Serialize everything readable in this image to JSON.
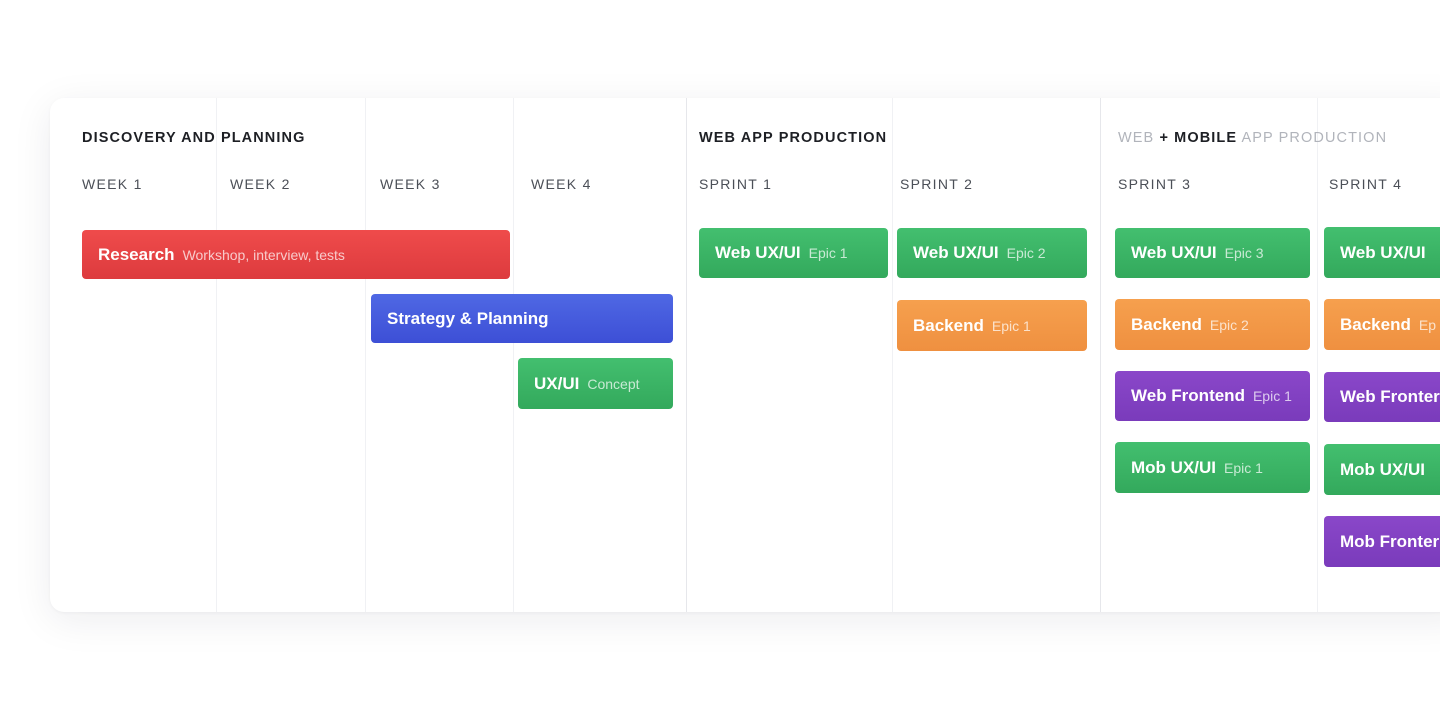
{
  "sections": {
    "discovery": {
      "title": "DISCOVERY AND PLANNING"
    },
    "web": {
      "title": "WEB APP PRODUCTION"
    },
    "mobile": {
      "title_a": "WEB",
      "title_b": " + MOBILE",
      "title_c": " APP PRODUCTION"
    }
  },
  "columns": [
    "WEEK 1",
    "WEEK 2",
    "WEEK 3",
    "WEEK 4",
    "SPRINT 1",
    "SPRINT 2",
    "SPRINT 3",
    "SPRINT 4"
  ],
  "tasks": {
    "research": {
      "label": "Research",
      "sub": "Workshop, interview, tests"
    },
    "strategy": {
      "label": "Strategy & Planning",
      "sub": ""
    },
    "uxui_concept": {
      "label": "UX/UI",
      "sub": "Concept"
    },
    "s1_web": {
      "label": "Web UX/UI",
      "sub": "Epic 1"
    },
    "s2_web": {
      "label": "Web UX/UI",
      "sub": "Epic 2"
    },
    "s2_backend": {
      "label": "Backend",
      "sub": "Epic 1"
    },
    "s3_web": {
      "label": "Web UX/UI",
      "sub": "Epic 3"
    },
    "s3_backend": {
      "label": "Backend",
      "sub": "Epic 2"
    },
    "s3_frontend": {
      "label": "Web Frontend",
      "sub": "Epic 1"
    },
    "s3_mob": {
      "label": "Mob UX/UI",
      "sub": "Epic 1"
    },
    "s4_web": {
      "label": "Web UX/UI",
      "sub": ""
    },
    "s4_backend": {
      "label": "Backend",
      "sub": "Ep"
    },
    "s4_frontend": {
      "label": "Web Fronter",
      "sub": ""
    },
    "s4_mob": {
      "label": "Mob UX/UI",
      "sub": ""
    },
    "s4_mobfront": {
      "label": "Mob Fronter",
      "sub": ""
    }
  },
  "colors": {
    "red": "#e44244",
    "blue": "#475cde",
    "green": "#3bb465",
    "orange": "#f39847",
    "purple": "#8241c2"
  }
}
